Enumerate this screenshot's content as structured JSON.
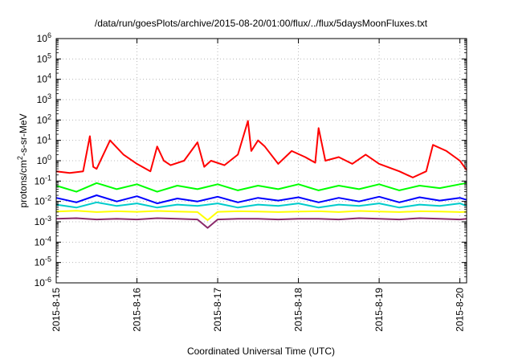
{
  "chart_data": {
    "type": "line",
    "title": "/data/run/goesPlots/archive/2015-08-20/01:00/flux/../flux/5daysMoonFluxes.txt",
    "xlabel": "Coordinated Universal Time (UTC)",
    "ylabel_parts": [
      "protons/cm",
      "2",
      "-s-sr-MeV"
    ],
    "y_scale": "log",
    "ylim": [
      1e-06,
      1000000.0
    ],
    "y_ticks": [
      {
        "value": 1e-06,
        "base": "10",
        "exp": "-6"
      },
      {
        "value": 1e-05,
        "base": "10",
        "exp": "-5"
      },
      {
        "value": 0.0001,
        "base": "10",
        "exp": "-4"
      },
      {
        "value": 0.001,
        "base": "10",
        "exp": "-3"
      },
      {
        "value": 0.01,
        "base": "10",
        "exp": "-2"
      },
      {
        "value": 0.1,
        "base": "10",
        "exp": "-1"
      },
      {
        "value": 1,
        "base": "10",
        "exp": "0"
      },
      {
        "value": 10,
        "base": "10",
        "exp": "1"
      },
      {
        "value": 100,
        "base": "10",
        "exp": "2"
      },
      {
        "value": 1000,
        "base": "10",
        "exp": "3"
      },
      {
        "value": 10000,
        "base": "10",
        "exp": "4"
      },
      {
        "value": 100000,
        "base": "10",
        "exp": "5"
      },
      {
        "value": 1000000,
        "base": "10",
        "exp": "6"
      }
    ],
    "xlim": [
      "2015-08-15 00:00",
      "2015-08-20 02:00"
    ],
    "x_ticks": [
      {
        "value": "2015-08-15 00:00",
        "label": "2015-8-15"
      },
      {
        "value": "2015-08-16 00:00",
        "label": "2015-8-16"
      },
      {
        "value": "2015-08-17 00:00",
        "label": "2015-8-17"
      },
      {
        "value": "2015-08-18 00:00",
        "label": "2015-8-18"
      },
      {
        "value": "2015-08-19 00:00",
        "label": "2015-8-19"
      },
      {
        "value": "2015-08-20 00:00",
        "label": "2015-8-20"
      }
    ],
    "grid": true,
    "series": [
      {
        "color": "#8b2a6b",
        "x": [
          "2015-08-15 00:00",
          "2015-08-15 06:00",
          "2015-08-15 12:00",
          "2015-08-15 18:00",
          "2015-08-16 00:00",
          "2015-08-16 06:00",
          "2015-08-16 12:00",
          "2015-08-16 18:00",
          "2015-08-16 21:00",
          "2015-08-17 00:00",
          "2015-08-17 06:00",
          "2015-08-17 12:00",
          "2015-08-17 18:00",
          "2015-08-18 00:00",
          "2015-08-18 06:00",
          "2015-08-18 12:00",
          "2015-08-18 18:00",
          "2015-08-19 00:00",
          "2015-08-19 06:00",
          "2015-08-19 12:00",
          "2015-08-19 18:00",
          "2015-08-20 00:00",
          "2015-08-20 02:00"
        ],
        "y": [
          0.0014,
          0.0015,
          0.0013,
          0.0014,
          0.0013,
          0.0015,
          0.0014,
          0.0013,
          0.0005,
          0.0013,
          0.0014,
          0.0014,
          0.0013,
          0.0014,
          0.0014,
          0.0013,
          0.0015,
          0.0014,
          0.0013,
          0.0015,
          0.0014,
          0.0013,
          0.0014
        ]
      },
      {
        "color": "#ffff00",
        "x": [
          "2015-08-15 00:00",
          "2015-08-15 06:00",
          "2015-08-15 12:00",
          "2015-08-15 18:00",
          "2015-08-16 00:00",
          "2015-08-16 06:00",
          "2015-08-16 12:00",
          "2015-08-16 18:00",
          "2015-08-16 21:00",
          "2015-08-17 00:00",
          "2015-08-17 06:00",
          "2015-08-17 12:00",
          "2015-08-17 18:00",
          "2015-08-18 00:00",
          "2015-08-18 06:00",
          "2015-08-18 12:00",
          "2015-08-18 18:00",
          "2015-08-19 00:00",
          "2015-08-19 06:00",
          "2015-08-19 12:00",
          "2015-08-19 18:00",
          "2015-08-20 00:00",
          "2015-08-20 02:00"
        ],
        "y": [
          0.0032,
          0.0035,
          0.003,
          0.0033,
          0.0031,
          0.0034,
          0.0032,
          0.003,
          0.0012,
          0.0031,
          0.0033,
          0.0032,
          0.003,
          0.0032,
          0.0033,
          0.003,
          0.0034,
          0.0032,
          0.003,
          0.0033,
          0.0032,
          0.003,
          0.0031
        ]
      },
      {
        "color": "#00cccc",
        "x": [
          "2015-08-15 00:00",
          "2015-08-15 06:00",
          "2015-08-15 12:00",
          "2015-08-15 18:00",
          "2015-08-16 00:00",
          "2015-08-16 06:00",
          "2015-08-16 12:00",
          "2015-08-16 18:00",
          "2015-08-17 00:00",
          "2015-08-17 06:00",
          "2015-08-17 12:00",
          "2015-08-17 18:00",
          "2015-08-18 00:00",
          "2015-08-18 06:00",
          "2015-08-18 12:00",
          "2015-08-18 18:00",
          "2015-08-19 00:00",
          "2015-08-19 06:00",
          "2015-08-19 12:00",
          "2015-08-19 18:00",
          "2015-08-20 00:00",
          "2015-08-20 02:00"
        ],
        "y": [
          0.007,
          0.005,
          0.009,
          0.006,
          0.008,
          0.005,
          0.007,
          0.006,
          0.008,
          0.005,
          0.007,
          0.006,
          0.008,
          0.005,
          0.007,
          0.006,
          0.008,
          0.005,
          0.007,
          0.006,
          0.008,
          0.006
        ]
      },
      {
        "color": "#0000ff",
        "x": [
          "2015-08-15 00:00",
          "2015-08-15 06:00",
          "2015-08-15 12:00",
          "2015-08-15 18:00",
          "2015-08-16 00:00",
          "2015-08-16 06:00",
          "2015-08-16 12:00",
          "2015-08-16 18:00",
          "2015-08-17 00:00",
          "2015-08-17 06:00",
          "2015-08-17 12:00",
          "2015-08-17 18:00",
          "2015-08-18 00:00",
          "2015-08-18 06:00",
          "2015-08-18 12:00",
          "2015-08-18 18:00",
          "2015-08-19 00:00",
          "2015-08-19 06:00",
          "2015-08-19 12:00",
          "2015-08-19 18:00",
          "2015-08-20 00:00",
          "2015-08-20 02:00"
        ],
        "y": [
          0.015,
          0.009,
          0.02,
          0.01,
          0.018,
          0.008,
          0.014,
          0.01,
          0.017,
          0.009,
          0.015,
          0.011,
          0.016,
          0.009,
          0.015,
          0.01,
          0.017,
          0.009,
          0.016,
          0.011,
          0.015,
          0.012
        ]
      },
      {
        "color": "#00ff00",
        "x": [
          "2015-08-15 00:00",
          "2015-08-15 06:00",
          "2015-08-15 12:00",
          "2015-08-15 18:00",
          "2015-08-16 00:00",
          "2015-08-16 06:00",
          "2015-08-16 12:00",
          "2015-08-16 18:00",
          "2015-08-17 00:00",
          "2015-08-17 06:00",
          "2015-08-17 12:00",
          "2015-08-17 18:00",
          "2015-08-18 00:00",
          "2015-08-18 06:00",
          "2015-08-18 12:00",
          "2015-08-18 18:00",
          "2015-08-19 00:00",
          "2015-08-19 06:00",
          "2015-08-19 12:00",
          "2015-08-19 18:00",
          "2015-08-20 00:00",
          "2015-08-20 02:00"
        ],
        "y": [
          0.06,
          0.03,
          0.08,
          0.04,
          0.07,
          0.03,
          0.06,
          0.04,
          0.07,
          0.035,
          0.06,
          0.04,
          0.07,
          0.035,
          0.06,
          0.04,
          0.07,
          0.035,
          0.06,
          0.045,
          0.07,
          0.08
        ]
      },
      {
        "color": "#ff0000",
        "x": [
          "2015-08-15 00:00",
          "2015-08-15 04:00",
          "2015-08-15 08:00",
          "2015-08-15 10:00",
          "2015-08-15 11:00",
          "2015-08-15 12:00",
          "2015-08-15 16:00",
          "2015-08-15 20:00",
          "2015-08-16 00:00",
          "2015-08-16 04:00",
          "2015-08-16 06:00",
          "2015-08-16 08:00",
          "2015-08-16 10:00",
          "2015-08-16 14:00",
          "2015-08-16 18:00",
          "2015-08-16 20:00",
          "2015-08-16 22:00",
          "2015-08-17 02:00",
          "2015-08-17 06:00",
          "2015-08-17 09:00",
          "2015-08-17 10:00",
          "2015-08-17 12:00",
          "2015-08-17 14:00",
          "2015-08-17 18:00",
          "2015-08-17 22:00",
          "2015-08-18 02:00",
          "2015-08-18 05:00",
          "2015-08-18 06:00",
          "2015-08-18 08:00",
          "2015-08-18 12:00",
          "2015-08-18 16:00",
          "2015-08-18 20:00",
          "2015-08-19 00:00",
          "2015-08-19 06:00",
          "2015-08-19 10:00",
          "2015-08-19 14:00",
          "2015-08-19 16:00",
          "2015-08-19 20:00",
          "2015-08-20 00:00",
          "2015-08-20 02:00"
        ],
        "y": [
          0.3,
          0.25,
          0.3,
          16,
          0.5,
          0.4,
          10,
          2,
          0.7,
          0.3,
          5,
          1,
          0.6,
          1,
          8,
          0.5,
          1,
          0.6,
          2,
          90,
          3,
          10,
          5,
          0.7,
          3,
          1.5,
          0.8,
          40,
          1,
          1.5,
          0.7,
          2,
          0.7,
          0.3,
          0.15,
          0.3,
          6,
          3,
          1,
          0.35
        ]
      }
    ]
  }
}
